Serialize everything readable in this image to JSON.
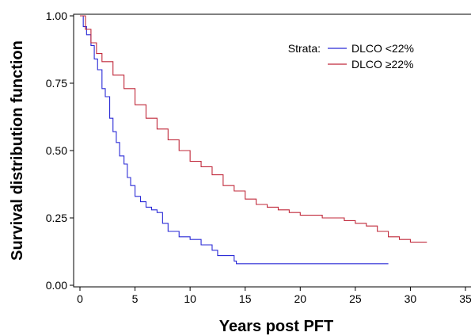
{
  "chart_data": {
    "type": "line",
    "title": "",
    "xlabel": "Years post PFT",
    "ylabel": "Survival distribution function",
    "xlim": [
      0,
      35
    ],
    "ylim": [
      0,
      1
    ],
    "x_ticks": [
      "0",
      "5",
      "10",
      "15",
      "20",
      "25",
      "30",
      "35"
    ],
    "y_ticks": [
      "0.00",
      "0.25",
      "0.50",
      "0.75",
      "1.00"
    ],
    "grid": false,
    "legend": {
      "title": "Strata:",
      "position": "top-right",
      "entries": [
        "DLCO <22%",
        "DLCO ≥22%"
      ]
    },
    "series": [
      {
        "name": "DLCO <22%",
        "color": "#2a2ad6",
        "step": true,
        "points": [
          [
            0,
            1.0
          ],
          [
            0.3,
            0.96
          ],
          [
            0.6,
            0.93
          ],
          [
            1.0,
            0.89
          ],
          [
            1.3,
            0.84
          ],
          [
            1.6,
            0.8
          ],
          [
            2.0,
            0.73
          ],
          [
            2.3,
            0.7
          ],
          [
            2.7,
            0.62
          ],
          [
            3.0,
            0.57
          ],
          [
            3.3,
            0.53
          ],
          [
            3.6,
            0.48
          ],
          [
            4.0,
            0.45
          ],
          [
            4.3,
            0.4
          ],
          [
            4.6,
            0.37
          ],
          [
            5.0,
            0.33
          ],
          [
            5.5,
            0.31
          ],
          [
            6.0,
            0.29
          ],
          [
            6.5,
            0.28
          ],
          [
            7.0,
            0.27
          ],
          [
            7.5,
            0.23
          ],
          [
            8.0,
            0.2
          ],
          [
            9.0,
            0.18
          ],
          [
            10.0,
            0.17
          ],
          [
            11.0,
            0.15
          ],
          [
            12.0,
            0.13
          ],
          [
            12.5,
            0.11
          ],
          [
            14.0,
            0.09
          ],
          [
            14.2,
            0.08
          ],
          [
            28.0,
            0.08
          ]
        ]
      },
      {
        "name": "DLCO ≥22%",
        "color": "#c0283a",
        "step": true,
        "points": [
          [
            0,
            1.0
          ],
          [
            0.5,
            0.95
          ],
          [
            1.0,
            0.9
          ],
          [
            1.5,
            0.86
          ],
          [
            2.0,
            0.83
          ],
          [
            3.0,
            0.78
          ],
          [
            4.0,
            0.73
          ],
          [
            5.0,
            0.67
          ],
          [
            6.0,
            0.62
          ],
          [
            7.0,
            0.58
          ],
          [
            8.0,
            0.54
          ],
          [
            9.0,
            0.5
          ],
          [
            10.0,
            0.46
          ],
          [
            11.0,
            0.44
          ],
          [
            12.0,
            0.41
          ],
          [
            13.0,
            0.37
          ],
          [
            14.0,
            0.35
          ],
          [
            15.0,
            0.32
          ],
          [
            16.0,
            0.3
          ],
          [
            17.0,
            0.29
          ],
          [
            18.0,
            0.28
          ],
          [
            19.0,
            0.27
          ],
          [
            20.0,
            0.26
          ],
          [
            22.0,
            0.25
          ],
          [
            24.0,
            0.24
          ],
          [
            25.0,
            0.23
          ],
          [
            26.0,
            0.22
          ],
          [
            27.0,
            0.2
          ],
          [
            28.0,
            0.18
          ],
          [
            29.0,
            0.17
          ],
          [
            30.0,
            0.16
          ],
          [
            31.5,
            0.16
          ]
        ]
      }
    ]
  }
}
